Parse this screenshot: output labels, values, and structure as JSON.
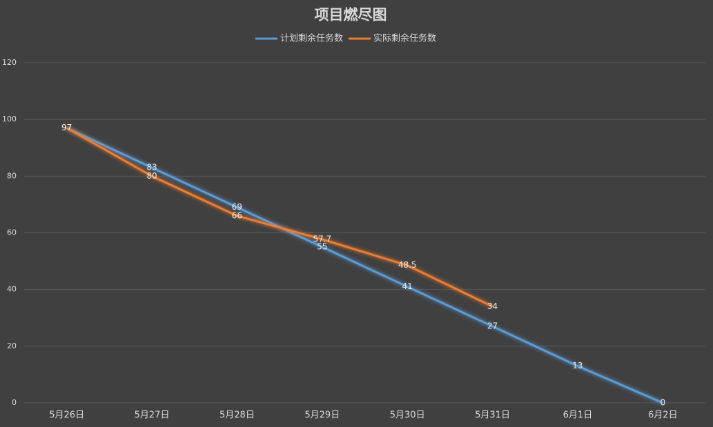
{
  "chart_data": {
    "type": "line",
    "title": "项目燃尽图",
    "categories": [
      "5月26日",
      "5月27日",
      "5月28日",
      "5月29日",
      "5月30日",
      "5月31日",
      "6月1日",
      "6月2日"
    ],
    "series": [
      {
        "name": "计划剩余任务数",
        "color": "#5b9bd5",
        "values": [
          97,
          83,
          69,
          55,
          41,
          27,
          13,
          0
        ]
      },
      {
        "name": "实际剩余任务数",
        "color": "#ed7d31",
        "values": [
          97,
          80,
          66,
          57.7,
          48.5,
          34,
          null,
          null
        ]
      }
    ],
    "ylim": [
      0,
      120
    ],
    "yticks": [
      0,
      20,
      40,
      60,
      80,
      100,
      120
    ],
    "grid": true,
    "legend": "top"
  }
}
